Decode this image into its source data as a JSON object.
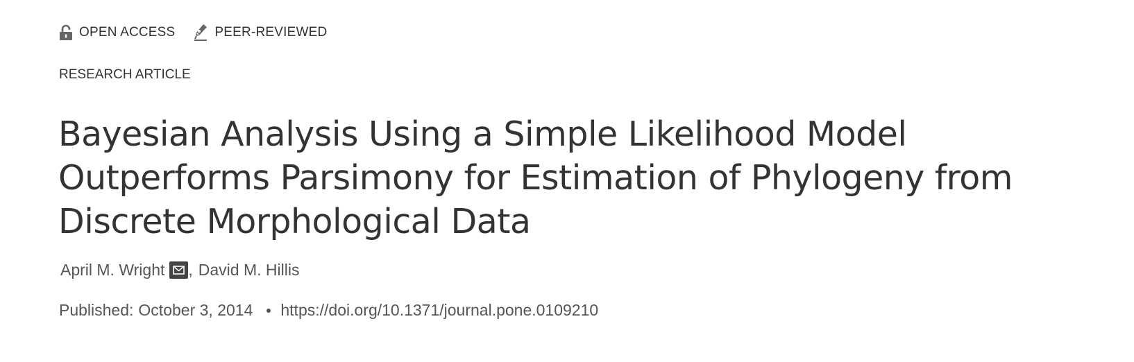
{
  "badges": [
    {
      "label": "OPEN ACCESS",
      "icon": "open-lock-icon"
    },
    {
      "label": "PEER-REVIEWED",
      "icon": "peer-reviewed-pen-icon"
    }
  ],
  "article_type": "RESEARCH ARTICLE",
  "title_lines": [
    "Bayesian Analysis Using a Simple Likelihood Model",
    "Outperforms Parsimony for Estimation of Phylogeny from",
    "Discrete Morphological Data"
  ],
  "authors": [
    {
      "name": "April M. Wright",
      "has_email_icon": true
    },
    {
      "name": "David M. Hillis",
      "has_email_icon": false
    }
  ],
  "author_separator": ",",
  "published_label": "Published:",
  "published_date": "October 3, 2014",
  "doi_url": "https://doi.org/10.1371/journal.pone.0109210",
  "colors": {
    "text": "#333333",
    "meta_text": "#555555",
    "icon_bg": "#444444"
  }
}
